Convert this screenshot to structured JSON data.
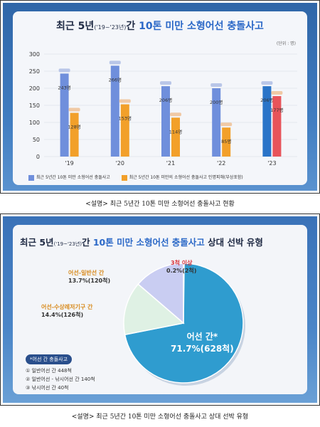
{
  "chart_data": [
    {
      "type": "bar",
      "title": {
        "main": "최근 5년",
        "range": "('19~'23년)",
        "rest1": "간 ",
        "accent": "10톤 미만 소형어선 충돌사고"
      },
      "unit": "(단위 : 명)",
      "categories": [
        "'19",
        "'20",
        "'21",
        "'22",
        "'23"
      ],
      "ylim": [
        0,
        300
      ],
      "yticks": [
        0,
        50,
        100,
        150,
        200,
        250,
        300
      ],
      "series": [
        {
          "name": "최근 5년간 10톤 미만 소형어선 충돌사고",
          "values": [
            243,
            266,
            206,
            200,
            206
          ],
          "labels": [
            "243명",
            "266명",
            "206명",
            "200명",
            "206명"
          ],
          "color": "#6f8fdc"
        },
        {
          "name": "최근 5년간 10톤 미만의 소형어선 충돌사고 인명피해(부상포함)",
          "values": [
            128,
            153,
            114,
            85,
            177
          ],
          "labels": [
            "128명",
            "153명",
            "114명",
            "85명",
            "177명"
          ],
          "color": "#f2a02a"
        }
      ],
      "grid": true,
      "legend": "bottom"
    },
    {
      "type": "pie",
      "title": {
        "main": "최근 5년",
        "range": "('19~'23년)",
        "rest1": "간 ",
        "accent": "10톤 미만 소형어선 충돌사고",
        "rest2": " 상대 선박 유형"
      },
      "slices": [
        {
          "label": "어선 간*",
          "value": 71.7,
          "count": "71.7%(628척)",
          "color": "#2f9ccf"
        },
        {
          "label": "어선-수상레저기구 간",
          "value": 14.4,
          "count": "14.4%(126척)",
          "color": "#dff1e4"
        },
        {
          "label": "어선-일반선 간",
          "value": 13.7,
          "count": "13.7%(120척)",
          "color": "#c9cdf2"
        },
        {
          "label": "3척 이상",
          "value": 0.2,
          "count": "0.2%(2척)",
          "color": "#e5e5e5"
        }
      ],
      "note": {
        "heading": "*어선 간 충돌사고",
        "items": [
          "① 일반어선 간 448척",
          "② 일반어선 - 낚시어선 간 140척",
          "③ 낚시어선 간 40척"
        ]
      }
    }
  ],
  "captions": {
    "first": "<설명> 최근 5년간 10톤 미만 소형어선 충돌사고 현황",
    "second": "<설명> 최근 5년간 10톤 미만 소형어선 충돌사고 상대 선박 유형"
  },
  "colors": {
    "bar_blue": "#6f8fdc",
    "bar_orange": "#f2a02a",
    "bar_blue_last": "#2a74c8",
    "bar_orange_last": "#e8545a"
  }
}
